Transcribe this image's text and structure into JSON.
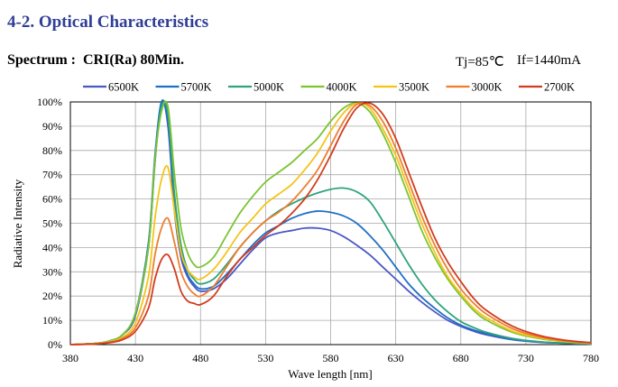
{
  "header": {
    "section_title": "4-2. Optical Characteristics",
    "spectrum_label": "Spectrum :  CRI(Ra) 80Min.",
    "tj": "Tj=85℃",
    "if": "If=1440mA"
  },
  "chart_data": {
    "type": "line",
    "xlabel": "Wave length [nm]",
    "ylabel": "Radiative Intensity",
    "xlim": [
      380,
      780
    ],
    "ylim": [
      0,
      100
    ],
    "xticks": [
      "380",
      "430",
      "480",
      "530",
      "580",
      "630",
      "680",
      "730",
      "780"
    ],
    "yticks": [
      "0%",
      "10%",
      "20%",
      "30%",
      "40%",
      "50%",
      "60%",
      "70%",
      "80%",
      "90%",
      "100%"
    ],
    "grid": true,
    "legend_position": "top",
    "series": [
      {
        "name": "6500K",
        "color": "#4a58c4",
        "x": [
          380,
          400,
          410,
          420,
          430,
          440,
          445,
          450,
          455,
          460,
          465,
          470,
          475,
          480,
          490,
          500,
          510,
          520,
          530,
          540,
          550,
          560,
          570,
          580,
          590,
          600,
          610,
          620,
          630,
          640,
          650,
          660,
          670,
          680,
          690,
          700,
          720,
          740,
          760,
          780
        ],
        "y": [
          0,
          0.5,
          1.5,
          4,
          12,
          40,
          75,
          100,
          90,
          55,
          36,
          28,
          24,
          22,
          23,
          27,
          33,
          39,
          44,
          46,
          47,
          48,
          48,
          47,
          44.5,
          41,
          37,
          32,
          27,
          22,
          17.5,
          13.5,
          10,
          7.5,
          5.5,
          4,
          2,
          1,
          0.6,
          0.3
        ]
      },
      {
        "name": "5700K",
        "color": "#1f6fc7",
        "x": [
          380,
          400,
          410,
          420,
          430,
          440,
          445,
          450,
          455,
          460,
          465,
          470,
          475,
          480,
          490,
          500,
          510,
          520,
          530,
          540,
          550,
          560,
          570,
          580,
          590,
          600,
          610,
          620,
          630,
          640,
          650,
          660,
          670,
          680,
          690,
          700,
          720,
          740,
          760,
          780
        ],
        "y": [
          0,
          0.5,
          1.5,
          4,
          13,
          42,
          78,
          100,
          92,
          58,
          38,
          29,
          25,
          23,
          24,
          29,
          35,
          41,
          46,
          49,
          52,
          54,
          55,
          54.5,
          53,
          50,
          45,
          39,
          32,
          25,
          19.5,
          15,
          11,
          8,
          6,
          4.5,
          2.2,
          1.1,
          0.6,
          0.3
        ]
      },
      {
        "name": "5000K",
        "color": "#2fa37d",
        "x": [
          380,
          400,
          410,
          420,
          430,
          440,
          445,
          450,
          455,
          460,
          465,
          470,
          475,
          480,
          490,
          500,
          510,
          520,
          530,
          540,
          550,
          560,
          570,
          580,
          590,
          600,
          610,
          620,
          630,
          640,
          650,
          660,
          670,
          680,
          690,
          700,
          720,
          740,
          760,
          780
        ],
        "y": [
          0,
          0.5,
          1.5,
          4,
          13,
          40,
          76,
          98,
          95,
          62,
          41,
          31,
          27,
          25,
          27,
          33,
          40,
          46,
          51,
          55,
          58,
          60.5,
          62.5,
          64,
          64.5,
          63,
          59,
          51,
          42,
          33,
          25,
          18.5,
          13.5,
          9.5,
          7,
          5,
          2.5,
          1.2,
          0.6,
          0.3
        ]
      },
      {
        "name": "4000K",
        "color": "#7cc431",
        "x": [
          380,
          400,
          410,
          420,
          430,
          440,
          445,
          450,
          455,
          460,
          465,
          470,
          475,
          480,
          490,
          500,
          510,
          520,
          530,
          540,
          550,
          560,
          570,
          580,
          590,
          600,
          610,
          620,
          630,
          640,
          650,
          660,
          670,
          680,
          690,
          700,
          720,
          740,
          760,
          780
        ],
        "y": [
          0,
          0.5,
          1.5,
          4,
          13,
          40,
          76,
          96,
          98,
          70,
          48,
          38,
          33,
          32,
          36,
          45,
          54,
          61,
          67,
          71,
          75,
          80,
          85,
          92,
          97.5,
          99.5,
          96,
          87,
          75,
          61,
          47,
          36,
          27,
          20,
          14,
          10,
          5,
          2.5,
          1.2,
          0.5
        ]
      },
      {
        "name": "3500K",
        "color": "#f4c417",
        "x": [
          380,
          400,
          410,
          420,
          430,
          440,
          445,
          450,
          455,
          460,
          465,
          470,
          475,
          480,
          490,
          500,
          510,
          520,
          530,
          540,
          550,
          560,
          570,
          580,
          590,
          600,
          610,
          620,
          630,
          640,
          650,
          660,
          670,
          680,
          690,
          700,
          720,
          740,
          760,
          780
        ],
        "y": [
          0,
          0.4,
          1.2,
          3,
          9,
          28,
          52,
          68,
          73,
          55,
          38,
          31,
          28,
          27,
          31,
          38,
          46,
          52,
          58,
          62,
          66,
          72,
          79,
          88,
          95.5,
          99.5,
          97.5,
          89,
          78,
          64,
          50,
          38,
          28,
          21,
          15,
          11,
          5.5,
          2.8,
          1.3,
          0.6
        ]
      },
      {
        "name": "3000K",
        "color": "#ee7e2e",
        "x": [
          380,
          400,
          410,
          420,
          430,
          440,
          445,
          450,
          455,
          460,
          465,
          470,
          475,
          480,
          490,
          500,
          510,
          520,
          530,
          540,
          550,
          560,
          570,
          580,
          590,
          600,
          610,
          620,
          630,
          640,
          650,
          660,
          670,
          680,
          690,
          700,
          720,
          740,
          760,
          780
        ],
        "y": [
          0,
          0.3,
          1,
          2.5,
          7,
          20,
          37,
          48,
          52,
          42,
          30,
          24,
          21,
          20,
          24,
          32,
          40,
          46,
          51,
          54.5,
          59,
          65,
          72,
          82,
          92,
          99,
          98.5,
          92,
          81,
          67,
          53,
          41,
          31,
          23,
          17,
          12.5,
          6.5,
          3.2,
          1.5,
          0.7
        ]
      },
      {
        "name": "2700K",
        "color": "#d23c1e",
        "x": [
          380,
          400,
          410,
          420,
          430,
          440,
          445,
          450,
          455,
          460,
          465,
          470,
          475,
          480,
          490,
          500,
          510,
          520,
          530,
          540,
          550,
          560,
          570,
          580,
          590,
          600,
          610,
          620,
          630,
          640,
          650,
          660,
          670,
          680,
          690,
          700,
          720,
          740,
          760,
          780
        ],
        "y": [
          0,
          0.3,
          0.8,
          2,
          5.5,
          15,
          27,
          35,
          37,
          31,
          22,
          18,
          17,
          16.5,
          20,
          28,
          35,
          40,
          45,
          49,
          54,
          60,
          68,
          78,
          89,
          97.5,
          99.5,
          95,
          85,
          71,
          57,
          44,
          34,
          26,
          19,
          14,
          7.5,
          3.8,
          1.8,
          0.8
        ]
      }
    ]
  }
}
